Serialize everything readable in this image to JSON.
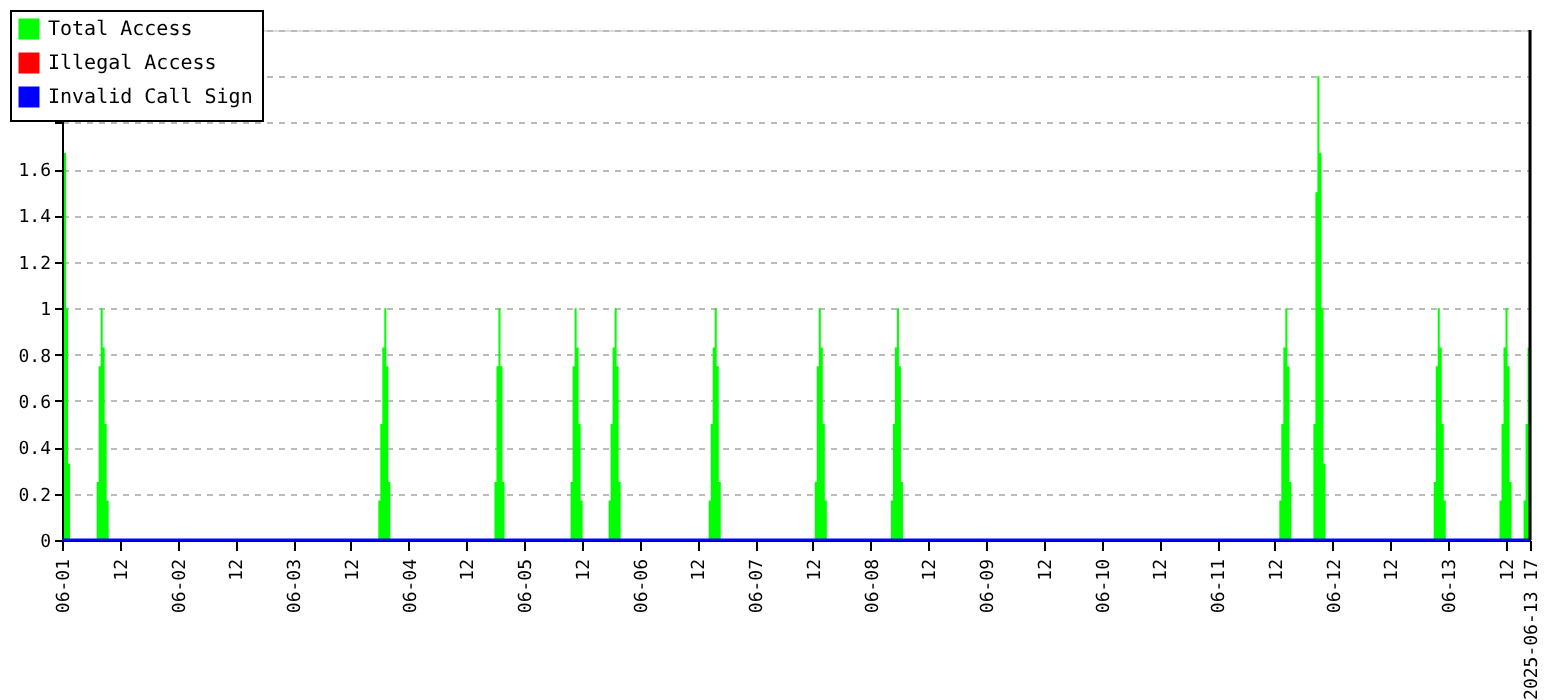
{
  "chart_data": {
    "type": "area",
    "series": [
      {
        "name": "Total Access",
        "color": "#00ff00",
        "x": [
          "2025-06-01T00:25",
          "2025-06-01T00:50",
          "2025-06-01T01:15",
          "2025-06-01T01:40",
          "2025-06-01T07:12",
          "2025-06-01T07:37",
          "2025-06-01T08:02",
          "2025-06-01T08:27",
          "2025-06-01T08:52",
          "2025-06-01T09:17",
          "2025-06-01T09:42",
          "2025-06-03T17:43",
          "2025-06-03T18:08",
          "2025-06-03T18:33",
          "2025-06-03T18:58",
          "2025-06-03T19:23",
          "2025-06-03T19:48",
          "2025-06-03T20:13",
          "2025-06-04T17:51",
          "2025-06-04T18:16",
          "2025-06-04T18:41",
          "2025-06-04T19:06",
          "2025-06-04T19:31",
          "2025-06-04T19:56",
          "2025-06-05T09:40",
          "2025-06-05T10:05",
          "2025-06-05T10:30",
          "2025-06-05T10:55",
          "2025-06-05T11:20",
          "2025-06-05T11:45",
          "2025-06-05T12:10",
          "2025-06-05T17:34",
          "2025-06-05T17:59",
          "2025-06-05T18:24",
          "2025-06-05T18:49",
          "2025-06-05T19:14",
          "2025-06-05T19:39",
          "2025-06-05T20:04",
          "2025-06-06T14:22",
          "2025-06-06T14:47",
          "2025-06-06T15:12",
          "2025-06-06T15:37",
          "2025-06-06T16:02",
          "2025-06-06T16:27",
          "2025-06-06T16:52",
          "2025-06-07T12:24",
          "2025-06-07T12:49",
          "2025-06-07T13:14",
          "2025-06-07T13:39",
          "2025-06-07T14:04",
          "2025-06-07T14:29",
          "2025-06-07T14:54",
          "2025-06-08T04:13",
          "2025-06-08T04:38",
          "2025-06-08T05:03",
          "2025-06-08T05:28",
          "2025-06-08T05:53",
          "2025-06-08T06:18",
          "2025-06-08T06:43",
          "2025-06-11T12:55",
          "2025-06-11T13:20",
          "2025-06-11T13:45",
          "2025-06-11T14:10",
          "2025-06-11T14:35",
          "2025-06-11T15:00",
          "2025-06-11T15:25",
          "2025-06-11T20:00",
          "2025-06-11T20:25",
          "2025-06-11T20:50",
          "2025-06-11T21:15",
          "2025-06-11T21:40",
          "2025-06-11T22:05",
          "2025-06-11T22:30",
          "2025-06-12T21:00",
          "2025-06-12T21:25",
          "2025-06-12T21:50",
          "2025-06-12T22:15",
          "2025-06-12T22:40",
          "2025-06-12T23:05",
          "2025-06-12T23:30",
          "2025-06-13T10:40",
          "2025-06-13T11:05",
          "2025-06-13T11:30",
          "2025-06-13T11:55",
          "2025-06-13T12:20",
          "2025-06-13T12:45",
          "2025-06-13T13:10",
          "2025-06-13T15:40",
          "2025-06-13T16:05",
          "2025-06-13T16:30",
          "2025-06-13T16:55",
          "2025-06-13T17:00"
        ],
        "values": [
          1.67,
          1.0,
          0.33,
          0,
          0.25,
          0.75,
          1.0,
          0.83,
          0.5,
          0.17,
          0,
          0.17,
          0.5,
          0.83,
          1.0,
          0.75,
          0.25,
          0,
          0.25,
          0.75,
          1.0,
          0.75,
          0.25,
          0,
          0.25,
          0.75,
          1.0,
          0.83,
          0.5,
          0.17,
          0,
          0.17,
          0.5,
          0.83,
          1.0,
          0.75,
          0.25,
          0,
          0.17,
          0.5,
          0.83,
          1.0,
          0.75,
          0.25,
          0,
          0.25,
          0.75,
          1.0,
          0.83,
          0.5,
          0.17,
          0,
          0.17,
          0.5,
          0.83,
          1.0,
          0.75,
          0.25,
          0,
          0.17,
          0.5,
          0.83,
          1.0,
          0.75,
          0.25,
          0,
          0.5,
          1.5,
          2.0,
          1.67,
          1.0,
          0.33,
          0,
          0.25,
          0.75,
          1.0,
          0.83,
          0.5,
          0.17,
          0,
          0.17,
          0.5,
          0.83,
          1.0,
          0.75,
          0.25,
          0,
          0.17,
          0.5,
          0.83,
          1.0,
          1.0
        ]
      },
      {
        "name": "Illegal Access",
        "color": "#ff0000",
        "type": "line"
      },
      {
        "name": "Invalid Call Sign",
        "color": "#0000ff",
        "type": "line",
        "x": [
          "2025-06-01T00:00",
          "2025-06-13T17:00"
        ],
        "values": [
          0,
          0
        ]
      }
    ],
    "xlim": [
      "2025-06-01T00:00",
      "2025-06-13T17:00"
    ],
    "xticks": [
      {
        "value": "2025-06-01T00:00",
        "label": "06-01"
      },
      {
        "value": "2025-06-01T12:00",
        "label": "12"
      },
      {
        "value": "2025-06-02T00:00",
        "label": "06-02"
      },
      {
        "value": "2025-06-02T12:00",
        "label": "12"
      },
      {
        "value": "2025-06-03T00:00",
        "label": "06-03"
      },
      {
        "value": "2025-06-03T12:00",
        "label": "12"
      },
      {
        "value": "2025-06-04T00:00",
        "label": "06-04"
      },
      {
        "value": "2025-06-04T12:00",
        "label": "12"
      },
      {
        "value": "2025-06-05T00:00",
        "label": "06-05"
      },
      {
        "value": "2025-06-05T12:00",
        "label": "12"
      },
      {
        "value": "2025-06-06T00:00",
        "label": "06-06"
      },
      {
        "value": "2025-06-06T12:00",
        "label": "12"
      },
      {
        "value": "2025-06-07T00:00",
        "label": "06-07"
      },
      {
        "value": "2025-06-07T12:00",
        "label": "12"
      },
      {
        "value": "2025-06-08T00:00",
        "label": "06-08"
      },
      {
        "value": "2025-06-08T12:00",
        "label": "12"
      },
      {
        "value": "2025-06-09T00:00",
        "label": "06-09"
      },
      {
        "value": "2025-06-09T12:00",
        "label": "12"
      },
      {
        "value": "2025-06-10T00:00",
        "label": "06-10"
      },
      {
        "value": "2025-06-10T12:00",
        "label": "12"
      },
      {
        "value": "2025-06-11T00:00",
        "label": "06-11"
      },
      {
        "value": "2025-06-11T12:00",
        "label": "12"
      },
      {
        "value": "2025-06-12T00:00",
        "label": "06-12"
      },
      {
        "value": "2025-06-12T12:00",
        "label": "12"
      },
      {
        "value": "2025-06-13T00:00",
        "label": "06-13"
      },
      {
        "value": "2025-06-13T12:00",
        "label": "12"
      },
      {
        "value": "2025-06-13T17:00",
        "label": "2025-06-13 17"
      }
    ],
    "ylim": [
      0,
      2.2
    ],
    "yticks": [
      0,
      0.2,
      0.4,
      0.6,
      0.8,
      1,
      1.2,
      1.4,
      1.6,
      {
        "value": 1.8,
        "label": null
      },
      {
        "value": 2,
        "label": null
      },
      {
        "value": 2.2,
        "label": null
      }
    ],
    "grid": "y",
    "legend": "top left",
    "marker": "none"
  }
}
